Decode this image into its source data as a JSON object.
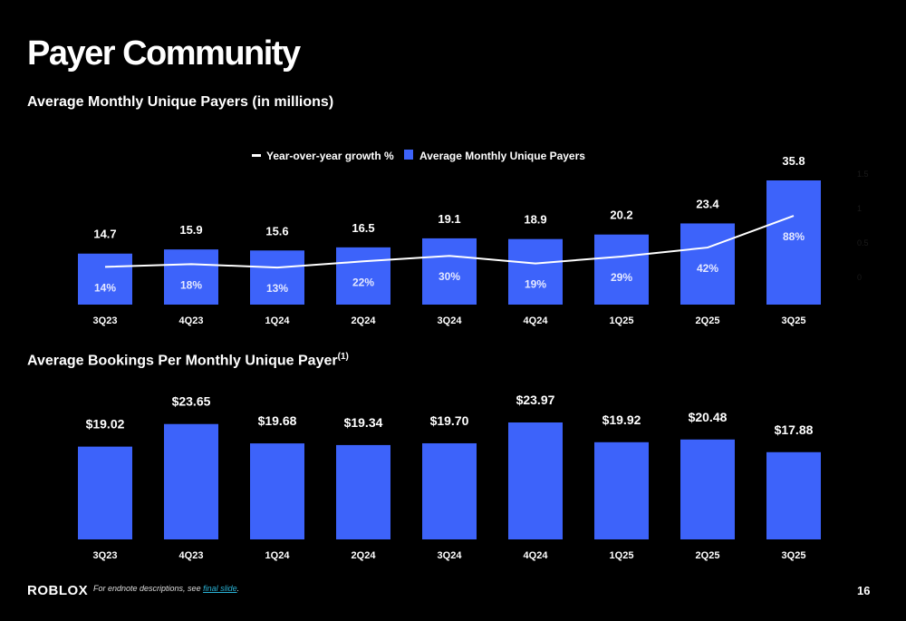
{
  "title": "Payer Community",
  "footer": {
    "logo": "ROBLOX",
    "note": "For endnote descriptions, see ",
    "link": "final slide",
    "note_end": ".",
    "page": "16"
  },
  "colors": {
    "bar": "#3d63fa",
    "line": "#ffffff",
    "background": "#000000"
  },
  "chart_data": [
    {
      "type": "bar+line",
      "title": "Average Monthly Unique Payers (in millions)",
      "categories": [
        "3Q23",
        "4Q23",
        "1Q24",
        "2Q24",
        "3Q24",
        "4Q24",
        "1Q25",
        "2Q25",
        "3Q25"
      ],
      "legend": [
        "Year-over-year growth %",
        "Average Monthly Unique Payers"
      ],
      "legend_position": "top",
      "series": [
        {
          "name": "Average Monthly Unique Payers",
          "type": "bar",
          "values": [
            14.7,
            15.9,
            15.6,
            16.5,
            19.1,
            18.9,
            20.2,
            23.4,
            35.8
          ],
          "labels": [
            "14.7",
            "15.9",
            "15.6",
            "16.5",
            "19.1",
            "18.9",
            "20.2",
            "23.4",
            "35.8"
          ]
        },
        {
          "name": "Year-over-year growth %",
          "type": "line",
          "values": [
            0.14,
            0.18,
            0.13,
            0.22,
            0.3,
            0.19,
            0.29,
            0.42,
            0.88
          ],
          "labels": [
            "14%",
            "18%",
            "13%",
            "22%",
            "30%",
            "19%",
            "29%",
            "42%",
            "88%"
          ]
        }
      ],
      "secondary_axis": {
        "ticks": [
          "0",
          "0.5",
          "1",
          "1.5"
        ],
        "range": [
          0,
          1.5
        ]
      }
    },
    {
      "type": "bar",
      "title": "Average Bookings Per Monthly Unique Payer",
      "title_sup": "(1)",
      "categories": [
        "3Q23",
        "4Q23",
        "1Q24",
        "2Q24",
        "3Q24",
        "4Q24",
        "1Q25",
        "2Q25",
        "3Q25"
      ],
      "values": [
        19.02,
        23.65,
        19.68,
        19.34,
        19.7,
        23.97,
        19.92,
        20.48,
        17.88
      ],
      "labels": [
        "$19.02",
        "$23.65",
        "$19.68",
        "$19.34",
        "$19.70",
        "$23.97",
        "$19.92",
        "$20.48",
        "$17.88"
      ]
    }
  ]
}
